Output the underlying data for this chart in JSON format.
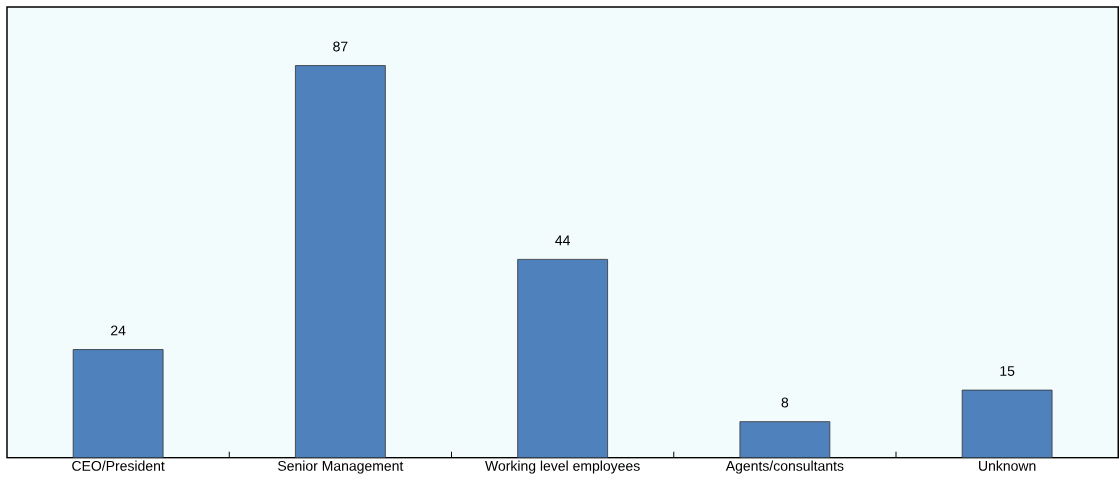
{
  "chart_data": {
    "type": "bar",
    "categories": [
      "CEO/President",
      "Senior Management",
      "Working level employees",
      "Agents/consultants",
      "Unknown"
    ],
    "values": [
      24,
      87,
      44,
      8,
      15
    ],
    "color": "#4f81bd",
    "ylim": [
      0,
      100
    ],
    "data_labels": true
  }
}
